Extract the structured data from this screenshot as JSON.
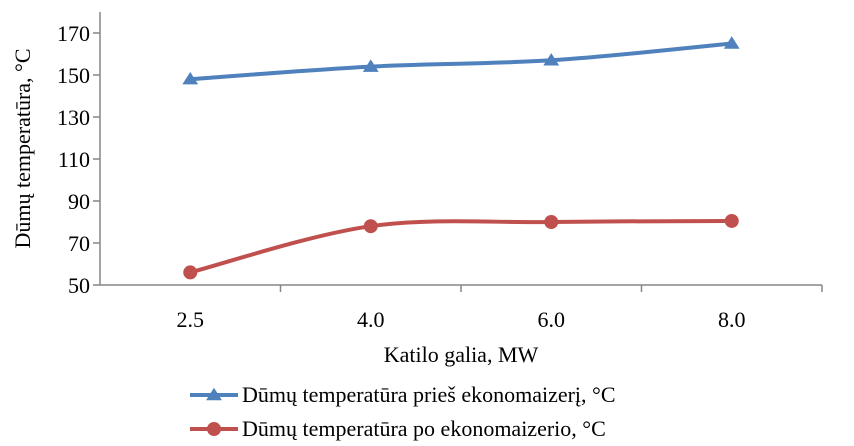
{
  "chart_data": {
    "type": "line",
    "categories": [
      "2.5",
      "4.0",
      "6.0",
      "8.0"
    ],
    "xlabel": "Katilo galia, MW",
    "ylabel": "Dūmų temperatūra, °C",
    "ylim": [
      50,
      180
    ],
    "yticks": [
      "50",
      "70",
      "90",
      "110",
      "130",
      "150",
      "170"
    ],
    "grid": false,
    "legend_position": "bottom",
    "series": [
      {
        "name": "Dūmų temperatūra prieš ekonomaizerį, °C",
        "values": [
          148,
          154,
          157,
          165
        ],
        "color": "#4f81bd",
        "marker": "triangle"
      },
      {
        "name": "Dūmų temperatūra po ekonomaizerio, °C",
        "values": [
          56,
          78,
          80,
          80.5
        ],
        "color": "#c0504d",
        "marker": "circle"
      }
    ]
  }
}
